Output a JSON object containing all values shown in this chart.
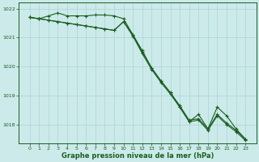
{
  "xlabel": "Graphe pression niveau de la mer (hPa)",
  "bg_color": "#cceaea",
  "grid_color": "#aad4d4",
  "line_color": "#1a5e20",
  "hours": [
    0,
    1,
    2,
    3,
    4,
    5,
    6,
    7,
    8,
    9,
    10,
    11,
    12,
    13,
    14,
    15,
    16,
    17,
    18,
    19,
    20,
    21,
    22,
    23
  ],
  "line1": [
    1021.7,
    1021.65,
    1021.75,
    1021.85,
    1021.75,
    1021.75,
    1021.75,
    1021.78,
    1021.78,
    1021.75,
    1021.65,
    1021.1,
    1020.5,
    1019.95,
    1019.5,
    1019.1,
    1018.6,
    1018.1,
    1018.35,
    1017.85,
    1018.6,
    1018.3,
    1017.85,
    1017.5
  ],
  "line2": [
    1021.7,
    1021.65,
    1021.6,
    1021.55,
    1021.5,
    1021.45,
    1021.4,
    1021.35,
    1021.3,
    1021.25,
    1021.55,
    1021.05,
    1020.45,
    1019.9,
    1019.45,
    1019.05,
    1018.6,
    1018.1,
    1018.15,
    1017.8,
    1018.3,
    1018.0,
    1017.75,
    1017.45
  ],
  "line3": [
    1021.7,
    1021.65,
    1021.6,
    1021.55,
    1021.5,
    1021.45,
    1021.4,
    1021.35,
    1021.3,
    1021.25,
    1021.55,
    1021.1,
    1020.55,
    1019.95,
    1019.5,
    1019.1,
    1018.65,
    1018.15,
    1018.2,
    1017.85,
    1018.35,
    1018.05,
    1017.8,
    1017.5
  ],
  "ylim": [
    1017.35,
    1022.2
  ],
  "yticks": [
    1018,
    1019,
    1020,
    1021,
    1022
  ],
  "xticks": [
    0,
    1,
    2,
    3,
    4,
    5,
    6,
    7,
    8,
    9,
    10,
    11,
    12,
    13,
    14,
    15,
    16,
    17,
    18,
    19,
    20,
    21,
    22,
    23
  ]
}
